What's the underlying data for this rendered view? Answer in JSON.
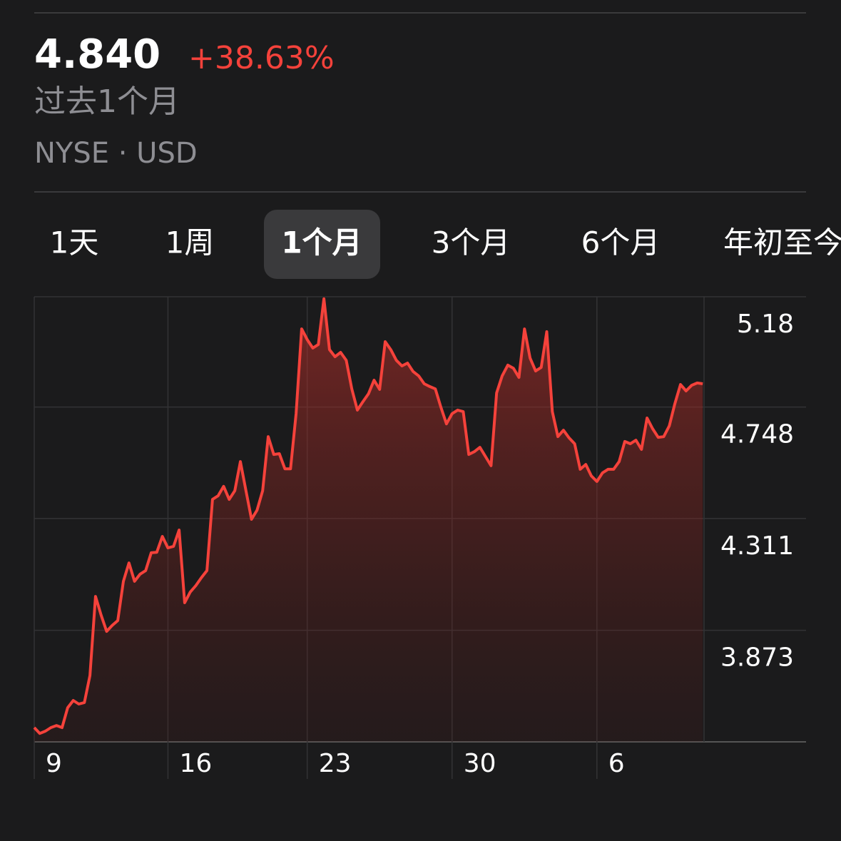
{
  "header": {
    "price": "4.840",
    "change": "+38.63%",
    "period": "过去1个月",
    "exchange": "NYSE · USD"
  },
  "tabs": {
    "items": [
      "1天",
      "1周",
      "1个月",
      "3个月",
      "6个月",
      "年初至今"
    ],
    "selected": 2
  },
  "chart_data": {
    "type": "line",
    "color": "#f5423b",
    "fill": true,
    "grid": true,
    "categories": [
      "9",
      null,
      null,
      null,
      null,
      null,
      null,
      null,
      null,
      null,
      null,
      null,
      null,
      null,
      null,
      null,
      null,
      null,
      null,
      null,
      null,
      null,
      null,
      null,
      "16",
      null,
      null,
      null,
      null,
      null,
      null,
      null,
      null,
      null,
      null,
      null,
      null,
      null,
      null,
      null,
      null,
      null,
      null,
      null,
      null,
      null,
      null,
      null,
      null,
      "23",
      null,
      null,
      null,
      null,
      null,
      null,
      null,
      null,
      null,
      null,
      null,
      null,
      null,
      null,
      null,
      null,
      null,
      null,
      null,
      null,
      null,
      null,
      null,
      null,
      null,
      "30",
      null,
      null,
      null,
      null,
      null,
      null,
      null,
      null,
      null,
      null,
      null,
      null,
      null,
      null,
      null,
      null,
      null,
      null,
      null,
      null,
      null,
      null,
      null,
      null,
      null,
      "6",
      null,
      null,
      null,
      null,
      null,
      null,
      null,
      null,
      null,
      null,
      null,
      null,
      null,
      null,
      null,
      null,
      null,
      null,
      null
    ],
    "values": [
      3.492,
      3.469,
      3.478,
      3.492,
      3.5,
      3.492,
      3.57,
      3.598,
      3.584,
      3.59,
      3.696,
      4.006,
      3.933,
      3.869,
      3.892,
      3.911,
      4.065,
      4.137,
      4.065,
      4.093,
      4.107,
      4.177,
      4.179,
      4.241,
      4.196,
      4.202,
      4.266,
      3.981,
      4.023,
      4.048,
      4.079,
      4.107,
      4.386,
      4.4,
      4.437,
      4.386,
      4.42,
      4.534,
      4.42,
      4.308,
      4.344,
      4.42,
      4.632,
      4.562,
      4.565,
      4.506,
      4.506,
      4.722,
      5.054,
      5.012,
      4.979,
      4.993,
      5.172,
      4.973,
      4.945,
      4.962,
      4.931,
      4.819,
      4.736,
      4.769,
      4.8,
      4.853,
      4.817,
      5.004,
      4.973,
      4.931,
      4.909,
      4.92,
      4.887,
      4.87,
      4.839,
      4.828,
      4.819,
      4.747,
      4.682,
      4.722,
      4.736,
      4.73,
      4.562,
      4.573,
      4.59,
      4.554,
      4.518,
      4.803,
      4.87,
      4.912,
      4.9,
      4.864,
      5.054,
      4.94,
      4.889,
      4.903,
      5.043,
      4.73,
      4.632,
      4.657,
      4.627,
      4.604,
      4.504,
      4.523,
      4.478,
      4.456,
      4.49,
      4.504,
      4.504,
      4.534,
      4.613,
      4.604,
      4.618,
      4.582,
      4.705,
      4.663,
      4.629,
      4.632,
      4.674,
      4.761,
      4.836,
      4.811,
      4.833,
      4.842,
      4.839
    ],
    "ylim": [
      3.436,
      5.18
    ],
    "yticks": [
      5.18,
      4.748,
      4.311,
      3.873
    ]
  }
}
